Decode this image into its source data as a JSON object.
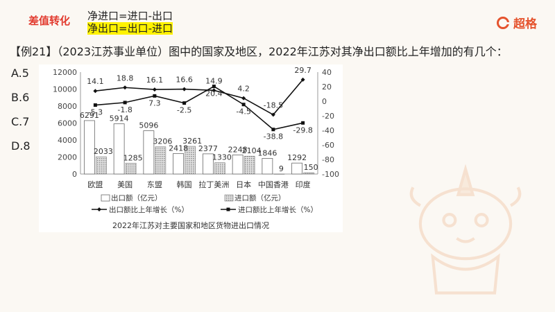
{
  "header": {
    "tag": "差值转化",
    "formula_import": "净进口=进口-出口",
    "formula_export": "净出口=出口-进口",
    "logo_text": "超格"
  },
  "question": "【例21】（2023江苏事业单位）图中的国家及地区，2022年江苏对其净出口额比上年增加的有几个：",
  "options": [
    "A.5",
    "B.6",
    "C.7",
    "D.8"
  ],
  "colors": {
    "tag": "#e23a2e",
    "highlight": "#fff200",
    "logo": "#e5532d"
  },
  "chart_data": {
    "type": "bar",
    "title": "2022年江苏对主要国家和地区货物进出口情况",
    "categories": [
      "欧盟",
      "美国",
      "东盟",
      "韩国",
      "拉丁美洲",
      "日本",
      "中国香港",
      "印度"
    ],
    "left_axis": {
      "min": 0,
      "max": 12000,
      "ticks": [
        "0",
        "2000",
        "4000",
        "6000",
        "8000",
        "10000",
        "12000"
      ]
    },
    "right_axis": {
      "min": -100,
      "max": 40,
      "ticks": [
        "-100",
        "-80",
        "-60",
        "-40",
        "-20",
        "0",
        "20",
        "40"
      ]
    },
    "bars": [
      {
        "name": "出口额（亿元）",
        "values": [
          6291,
          5914,
          5096,
          2418,
          2377,
          2248,
          1846,
          1292
        ],
        "labels": [
          "6291",
          "5914",
          "5096",
          "2418",
          "2377",
          "2248",
          "1846",
          "1292"
        ]
      },
      {
        "name": "进口额（亿元）",
        "values": [
          2033,
          1285,
          3206,
          3261,
          1330,
          2104,
          9,
          150
        ],
        "labels": [
          "2033",
          "1285",
          "3206",
          "3261",
          "1330",
          "2104",
          "9",
          "150"
        ]
      }
    ],
    "lines": [
      {
        "name": "出口额比上年增长（%）",
        "values": [
          14.1,
          18.8,
          16.1,
          16.6,
          14.9,
          4.2,
          -18.5,
          29.7
        ],
        "labels": [
          "14.1",
          "18.8",
          "16.1",
          "16.6",
          "14.9",
          "4.2",
          "-18.5",
          "29.7"
        ]
      },
      {
        "name": "进口额比上年增长（%）",
        "values": [
          -5.3,
          -1.8,
          7.3,
          -2.5,
          20.4,
          -4.5,
          -38.8,
          -29.8
        ],
        "labels": [
          "-5.3",
          "-1.8",
          "7.3",
          "-2.5",
          "20.4",
          "-4.5",
          "-38.8",
          "-29.8"
        ]
      }
    ],
    "legend": [
      "出口额（亿元）",
      "进口额（亿元）",
      "出口额比上年增长（%）",
      "进口额比上年增长（%）"
    ]
  }
}
